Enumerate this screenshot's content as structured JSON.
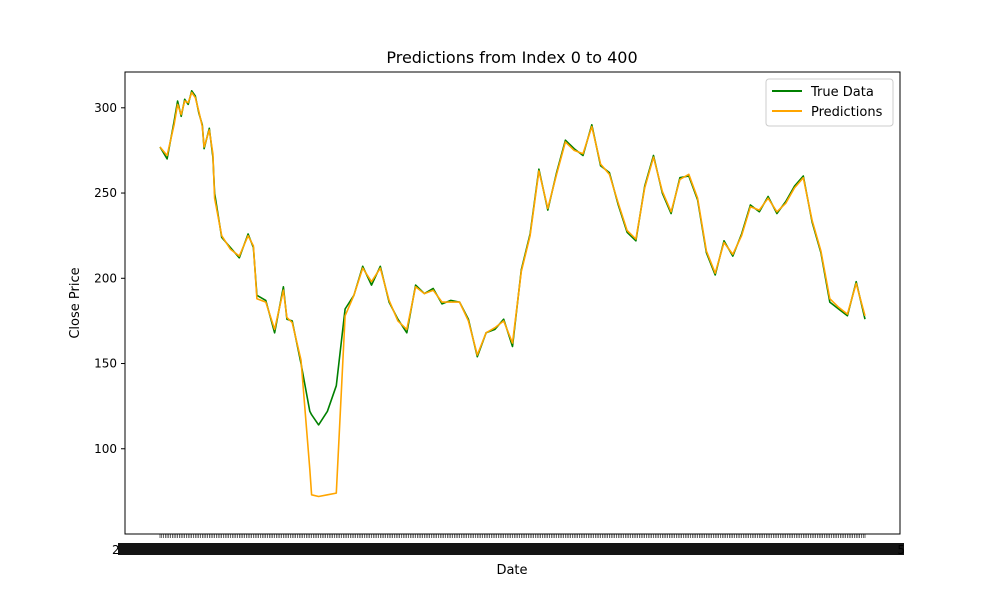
{
  "chart_data": {
    "type": "line",
    "title": "Predictions from Index 0 to 400",
    "xlabel": "Date",
    "ylabel": "Close Price",
    "ylim": [
      50,
      321
    ],
    "y_ticks": [
      100,
      150,
      200,
      250,
      300
    ],
    "x_tick_labels_visible": [
      "2",
      "5"
    ],
    "legend_position": "top-right",
    "colors": {
      "true_data": "#008000",
      "predictions": "#ffa500"
    },
    "x": [
      0,
      4,
      8,
      10,
      12,
      14,
      16,
      18,
      20,
      22,
      24,
      25,
      28,
      30,
      31,
      35,
      40,
      45,
      50,
      53,
      55,
      60,
      65,
      70,
      72,
      75,
      80,
      85,
      86,
      90,
      95,
      100,
      105,
      110,
      115,
      120,
      125,
      130,
      135,
      140,
      145,
      150,
      155,
      160,
      165,
      170,
      175,
      180,
      185,
      190,
      195,
      200,
      205,
      210,
      215,
      220,
      225,
      230,
      235,
      240,
      245,
      250,
      255,
      260,
      265,
      270,
      275,
      280,
      285,
      290,
      295,
      300,
      305,
      310,
      315,
      320,
      325,
      330,
      335,
      340,
      345,
      350,
      355,
      360,
      365,
      370,
      375,
      380,
      385,
      390,
      395,
      400
    ],
    "series": [
      {
        "name": "True Data",
        "values": [
          277,
          270,
          292,
          304,
          295,
          305,
          302,
          310,
          307,
          297,
          290,
          276,
          288,
          271,
          250,
          224,
          218,
          212,
          226,
          218,
          190,
          187,
          168,
          195,
          176,
          175,
          150,
          122,
          120,
          114,
          122,
          137,
          182,
          190,
          207,
          196,
          207,
          186,
          176,
          168,
          196,
          191,
          194,
          185,
          187,
          186,
          176,
          154,
          168,
          170,
          176,
          160,
          205,
          226,
          264,
          240,
          262,
          281,
          276,
          272,
          290,
          266,
          262,
          243,
          227,
          222,
          254,
          272,
          250,
          238,
          259,
          260,
          246,
          215,
          202,
          222,
          213,
          226,
          243,
          239,
          248,
          238,
          245,
          254,
          260,
          233,
          215,
          186,
          182,
          178,
          198,
          176
        ]
      },
      {
        "name": "Predictions",
        "values": [
          277,
          272,
          290,
          302,
          296,
          304,
          303,
          309,
          306,
          298,
          289,
          277,
          287,
          273,
          247,
          225,
          217,
          213,
          225,
          219,
          188,
          186,
          170,
          193,
          177,
          174,
          152,
          88,
          73,
          72,
          73,
          74,
          178,
          190,
          206,
          198,
          206,
          187,
          175,
          170,
          195,
          191,
          193,
          186,
          186,
          186,
          175,
          155,
          168,
          171,
          175,
          162,
          204,
          225,
          263,
          241,
          261,
          280,
          275,
          273,
          289,
          267,
          261,
          244,
          228,
          223,
          253,
          271,
          251,
          239,
          258,
          261,
          247,
          216,
          203,
          221,
          214,
          225,
          242,
          240,
          247,
          239,
          244,
          253,
          259,
          234,
          216,
          188,
          183,
          179,
          197,
          178
        ]
      }
    ]
  }
}
